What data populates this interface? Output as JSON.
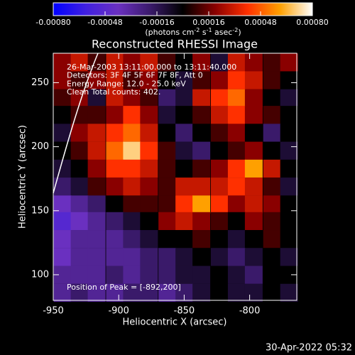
{
  "chart_data": {
    "type": "heatmap",
    "title": "Reconstructed RHESSI Image",
    "xlabel": "Heliocentric X (arcsec)",
    "ylabel": "Heliocentric Y (arcsec)",
    "xlim": [
      -950,
      -764
    ],
    "ylim": [
      80,
      273
    ],
    "xticks": [
      -950,
      -900,
      -850,
      -800
    ],
    "yticks": [
      100,
      150,
      200,
      250
    ],
    "x": [
      -943,
      -930,
      -917,
      -903,
      -890,
      -877,
      -863,
      -850,
      -837,
      -823,
      -810,
      -797,
      -783,
      -770
    ],
    "y": [
      266,
      252,
      238,
      225,
      211,
      197,
      183,
      169,
      155,
      142,
      128,
      114,
      100,
      86
    ],
    "z": [
      [
        0.0002,
        0.0003,
        0.0001,
        0.0003,
        0.0002,
        0.0003,
        0.0001,
        0.0,
        0.0002,
        -0.0001,
        0.0003,
        0.0002,
        0.0001,
        0.0002
      ],
      [
        0.0002,
        0.0001,
        0.0002,
        0.0003,
        0.0001,
        0.0002,
        0.0,
        -0.0001,
        0.0001,
        0.0002,
        0.0004,
        0.0003,
        0.0001,
        0.0
      ],
      [
        0.0001,
        0.0002,
        -0.0001,
        0.0003,
        0.0002,
        0.0001,
        -0.0002,
        -0.0001,
        0.0003,
        0.0004,
        0.0005,
        0.0002,
        0.0,
        -0.0001
      ],
      [
        0.0,
        0.0001,
        0.0001,
        0.0002,
        0.0004,
        0.0002,
        -0.0001,
        0.0,
        0.0001,
        0.0003,
        0.0004,
        0.0002,
        0.0001,
        0.0
      ],
      [
        -0.0001,
        0.0002,
        0.0003,
        0.0004,
        0.0005,
        0.0003,
        0.0,
        -0.0002,
        0.0,
        0.0001,
        0.0002,
        0.0,
        -0.0002,
        0.0
      ],
      [
        0.0,
        0.0001,
        0.0003,
        0.0005,
        0.0007,
        0.0004,
        0.0001,
        -0.0001,
        -0.0002,
        0.0,
        0.0001,
        0.0002,
        0.0,
        -0.0001
      ],
      [
        -0.0001,
        0.0,
        0.0002,
        0.0004,
        0.0004,
        0.0003,
        0.0001,
        0.0,
        0.0001,
        0.0002,
        0.0004,
        0.0006,
        0.0003,
        0.0
      ],
      [
        -0.0002,
        -0.0001,
        0.0001,
        0.0002,
        0.0003,
        0.0002,
        0.0001,
        0.0003,
        0.0003,
        0.0003,
        0.0004,
        0.0003,
        0.0001,
        -0.0001
      ],
      [
        -0.0004,
        -0.0003,
        -0.0002,
        0.0,
        0.0001,
        0.0001,
        0.0001,
        0.0004,
        0.0006,
        0.0004,
        0.0002,
        0.0003,
        0.0002,
        0.0
      ],
      [
        -0.0005,
        -0.0004,
        -0.0003,
        -0.0002,
        -0.0001,
        0.0,
        0.0002,
        0.0003,
        0.0002,
        0.0001,
        0.0,
        0.0002,
        0.0001,
        0.0
      ],
      [
        -0.0004,
        -0.0003,
        -0.0003,
        -0.0003,
        -0.0002,
        -0.0001,
        0.0,
        0.0,
        0.0001,
        0.0,
        -0.0001,
        0.0,
        0.0001,
        0.0
      ],
      [
        -0.0004,
        -0.0003,
        -0.0003,
        -0.0003,
        -0.0003,
        -0.0002,
        -0.0002,
        -0.0001,
        0.0,
        -0.0001,
        -0.0002,
        -0.0001,
        0.0,
        -0.0001
      ],
      [
        -0.0003,
        -0.0003,
        -0.0003,
        -0.0002,
        -0.0003,
        -0.0002,
        -0.0002,
        -0.0001,
        -0.0001,
        0.0,
        -0.0001,
        -0.0002,
        0.0,
        0.0
      ],
      [
        -0.0003,
        -0.0002,
        -0.0003,
        -0.0003,
        -0.0002,
        -0.0002,
        -0.0003,
        -0.0002,
        -0.0001,
        0.0,
        -0.0001,
        -0.0001,
        0.0,
        -0.0001
      ]
    ],
    "colormap": [
      "#0000ff",
      "#4020e0",
      "#6a30c0",
      "#3a1a6a",
      "#000000",
      "#8a0000",
      "#ff3000",
      "#ffa000",
      "#ffffff"
    ],
    "colorbar": {
      "lim": [
        -0.0008,
        0.0008
      ],
      "ticks": [
        {
          "value": -0.0008,
          "label": "-0.00080"
        },
        {
          "value": -0.00048,
          "label": "-0.00048"
        },
        {
          "value": -0.00016,
          "label": "-0.00016"
        },
        {
          "value": 0.00016,
          "label": "0.00016"
        },
        {
          "value": 0.00048,
          "label": "0.00048"
        },
        {
          "value": 0.0008,
          "label": "0.00080"
        }
      ],
      "unit_parts": [
        "(photons cm",
        "-2",
        " s",
        "-1",
        " asec",
        "-2",
        ")"
      ]
    },
    "annotations": [
      "26-Mar-2003 13:11:00.000 to 13:11:40.000",
      "Detectors: 3F 4F 5F 6F 7F 8F, Att 0",
      "Energy Range: 12.0 - 25.0 keV",
      "Clean    Total counts: 402."
    ],
    "peak_note": "Position of Peak = [-892,200]",
    "timestamp": "30-Apr-2022 05:32"
  }
}
